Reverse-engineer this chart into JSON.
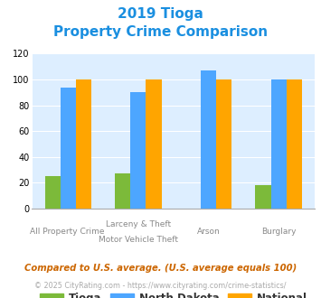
{
  "title_line1": "2019 Tioga",
  "title_line2": "Property Crime Comparison",
  "cat_labels_row1": [
    "",
    "Larceny & Theft",
    "Arson",
    ""
  ],
  "cat_labels_row2": [
    "All Property Crime",
    "Motor Vehicle Theft",
    "",
    "Burglary"
  ],
  "tioga": [
    25,
    27,
    0,
    18
  ],
  "north_dakota": [
    94,
    90,
    107,
    100
  ],
  "national": [
    100,
    100,
    100,
    100
  ],
  "tioga_color": "#7cba3a",
  "nd_color": "#4da6ff",
  "nat_color": "#ffa500",
  "ylim": [
    0,
    120
  ],
  "yticks": [
    0,
    20,
    40,
    60,
    80,
    100,
    120
  ],
  "bg_color": "#ddeeff",
  "footnote1": "Compared to U.S. average. (U.S. average equals 100)",
  "footnote2": "© 2025 CityRating.com - https://www.cityrating.com/crime-statistics/",
  "title_color": "#1a8fe0",
  "footnote1_color": "#cc6600",
  "footnote2_color": "#aaaaaa",
  "legend_label_color": "#333333",
  "url_color": "#4da6ff"
}
